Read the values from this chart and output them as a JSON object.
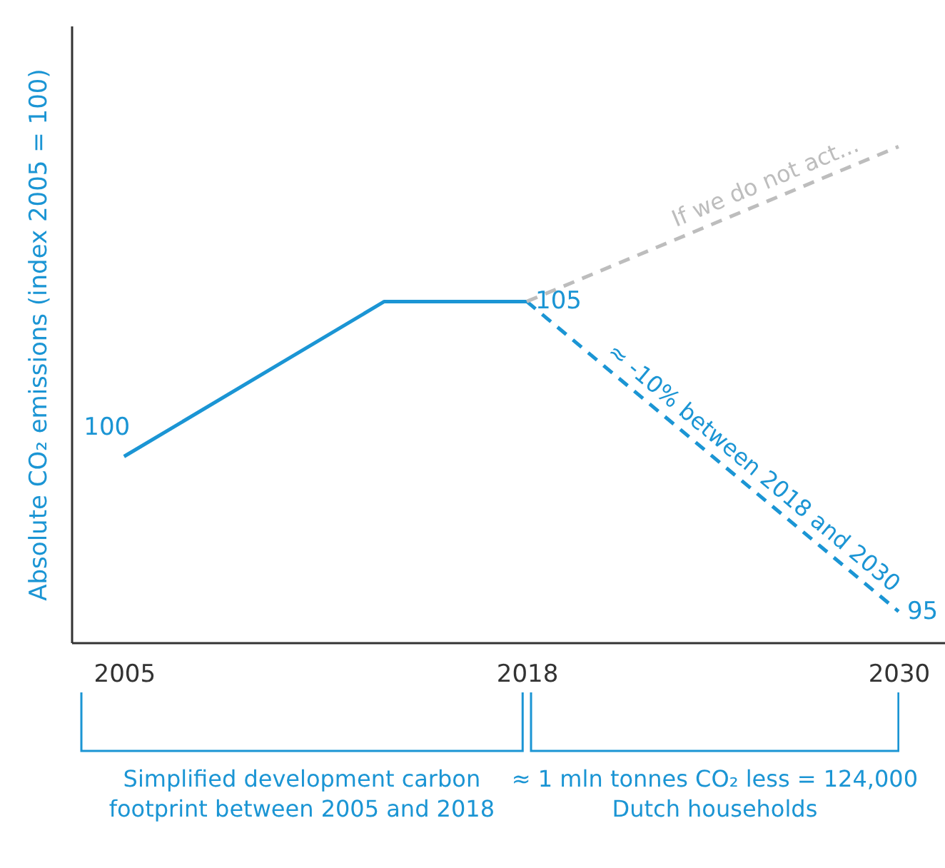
{
  "chart_data": {
    "type": "line",
    "ylabel": "Absolute CO₂ emissions (index 2005 = 100)",
    "xlim": [
      2003.3,
      2031.5
    ],
    "xticks": [
      2005,
      2018,
      2030
    ],
    "ylim": [
      94,
      113.9
    ],
    "grid": false,
    "marker": "none",
    "series": [
      {
        "color": "#1b95d4",
        "line_style": "solid",
        "x": [
          2005,
          2013.4,
          2018
        ],
        "values": [
          100,
          105,
          105
        ],
        "value_labels": [
          "100",
          null,
          "105"
        ]
      },
      {
        "color": "#1b95d4",
        "line_style": "dashed",
        "x": [
          2018,
          2030
        ],
        "values": [
          105,
          95
        ],
        "value_labels": [
          null,
          "95"
        ]
      },
      {
        "name": "If we do not act...",
        "color": "#bdbdbd",
        "line_style": "dashed",
        "x": [
          2018,
          2030
        ],
        "values": [
          105,
          110
        ]
      }
    ],
    "annotations": [
      "≈ -10% between 2018 and 2030",
      "Simplified development carbon footprint between 2005 and 2018",
      "≈ 1 mln tonnes CO₂ less = 124,000 Dutch households"
    ]
  }
}
